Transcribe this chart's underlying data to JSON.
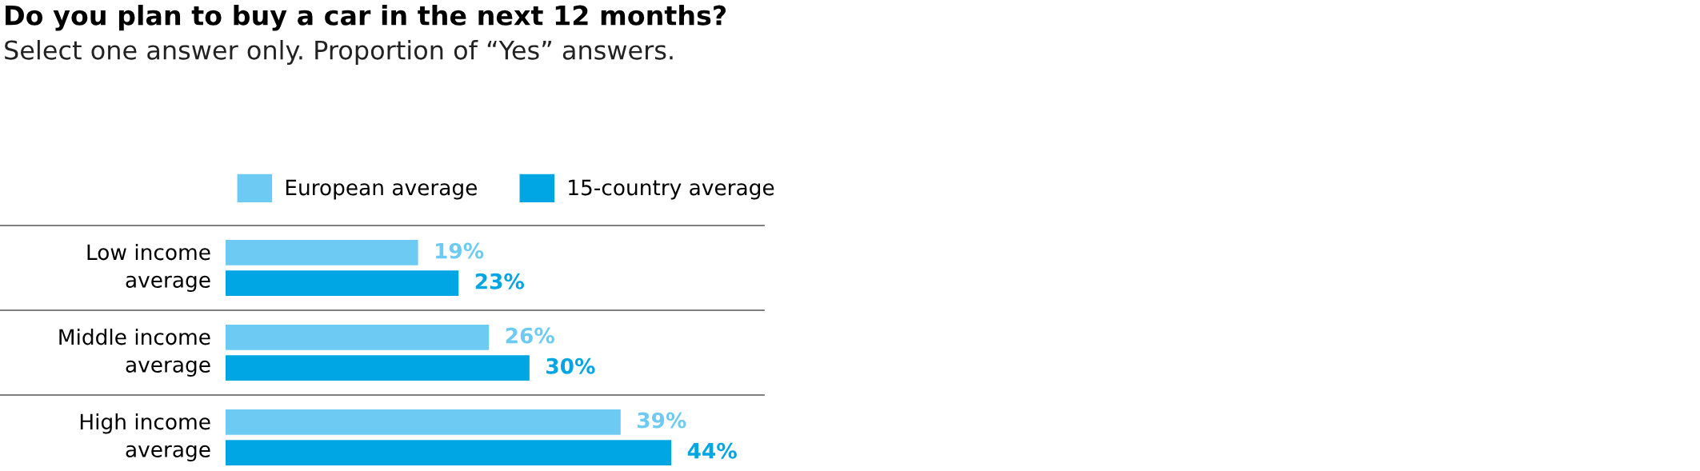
{
  "chart_data": {
    "type": "bar",
    "orientation": "horizontal",
    "title": "Do you plan to buy a car in the next 12 months?",
    "subtitle": "Select one answer only. Proportion of “Yes” answers.",
    "categories": [
      "Low income average",
      "Middle income average",
      "High income average"
    ],
    "series": [
      {
        "name": "European average",
        "color": "#6dcbf3",
        "values": [
          19,
          26,
          39
        ],
        "value_labels": [
          "19%",
          "26%",
          "39%"
        ]
      },
      {
        "name": "15-country average",
        "color": "#00a6e4",
        "values": [
          23,
          30,
          44
        ],
        "value_labels": [
          "23%",
          "30%",
          "44%"
        ]
      }
    ],
    "legend": "top"
  }
}
